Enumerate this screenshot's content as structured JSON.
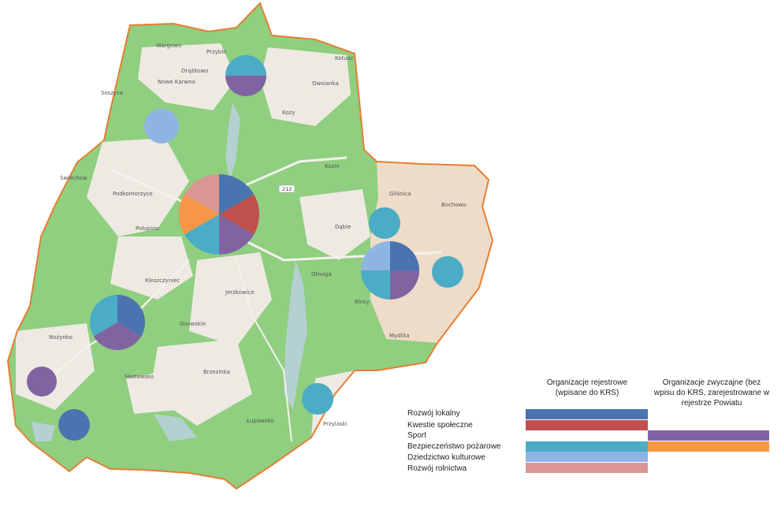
{
  "colors": {
    "rozwoj_lokalny": "#4a74b0",
    "kwestie_spoleczne": "#c0504d",
    "sport": "#8064a2",
    "bezpieczenstwo": "#4bacc6",
    "dziedzictwo": "#8eb4e3",
    "rozwoj_rolnictwa": "#d99694",
    "orange": "#f79646",
    "forest": "#8fcf7f",
    "open_land": "#eeeae3",
    "water": "#b5d0d0",
    "boundary": "#e67e32"
  },
  "places": [
    "Wargowo",
    "Przybin",
    "Kotusz",
    "Drążkowo",
    "Nowe Karwno",
    "Owsianka",
    "Soszyce",
    "Kozy",
    "Kozin",
    "Świechow",
    "Podkomorzyce",
    "Gliśnica",
    "Bochowo",
    "Połupino",
    "Dąbie",
    "Otnoga",
    "Kleszczyniec",
    "Jerzkowice",
    "Kłosy",
    "Osowskie",
    "Nożynko",
    "Mydlita",
    "Brzezinka",
    "Skotawsko",
    "Łupawsko",
    "Przylaski",
    "212"
  ],
  "legend": {
    "header_registered": "Organizacje rejestrowe (wpisane do KRS)",
    "header_ordinary": "Organizacje zwyczajne (bez wpisu do KRS, zarejestrowane w rejestrze Powiatu",
    "categories": [
      "Rozwój lokalny",
      "Kwestie społeczne",
      "Sport",
      "Bezpieczeństwo pożarowe",
      "Dziedzictwo kulturowe",
      "Rozwój rolnictwa"
    ]
  },
  "pies": [
    {
      "name": "pie-north",
      "slices": [
        "bezpieczenstwo",
        "sport"
      ]
    },
    {
      "name": "pie-northwest",
      "slices": [
        "dziedzictwo"
      ]
    },
    {
      "name": "pie-center",
      "slices": [
        "rozwoj_lokalny",
        "kwestie_spoleczne",
        "sport",
        "bezpieczenstwo",
        "orange",
        "rozwoj_rolnictwa"
      ]
    },
    {
      "name": "pie-glisnica",
      "slices": [
        "bezpieczenstwo"
      ]
    },
    {
      "name": "pie-east-large",
      "slices": [
        "rozwoj_lokalny",
        "sport",
        "bezpieczenstwo",
        "dziedzictwo"
      ]
    },
    {
      "name": "pie-bochowo",
      "slices": [
        "bezpieczenstwo"
      ]
    },
    {
      "name": "pie-west",
      "slices": [
        "rozwoj_lokalny",
        "sport",
        "bezpieczenstwo"
      ]
    },
    {
      "name": "pie-southwest",
      "slices": [
        "sport"
      ]
    },
    {
      "name": "pie-south-west2",
      "slices": [
        "rozwoj_lokalny"
      ]
    },
    {
      "name": "pie-south",
      "slices": [
        "bezpieczenstwo"
      ]
    }
  ]
}
